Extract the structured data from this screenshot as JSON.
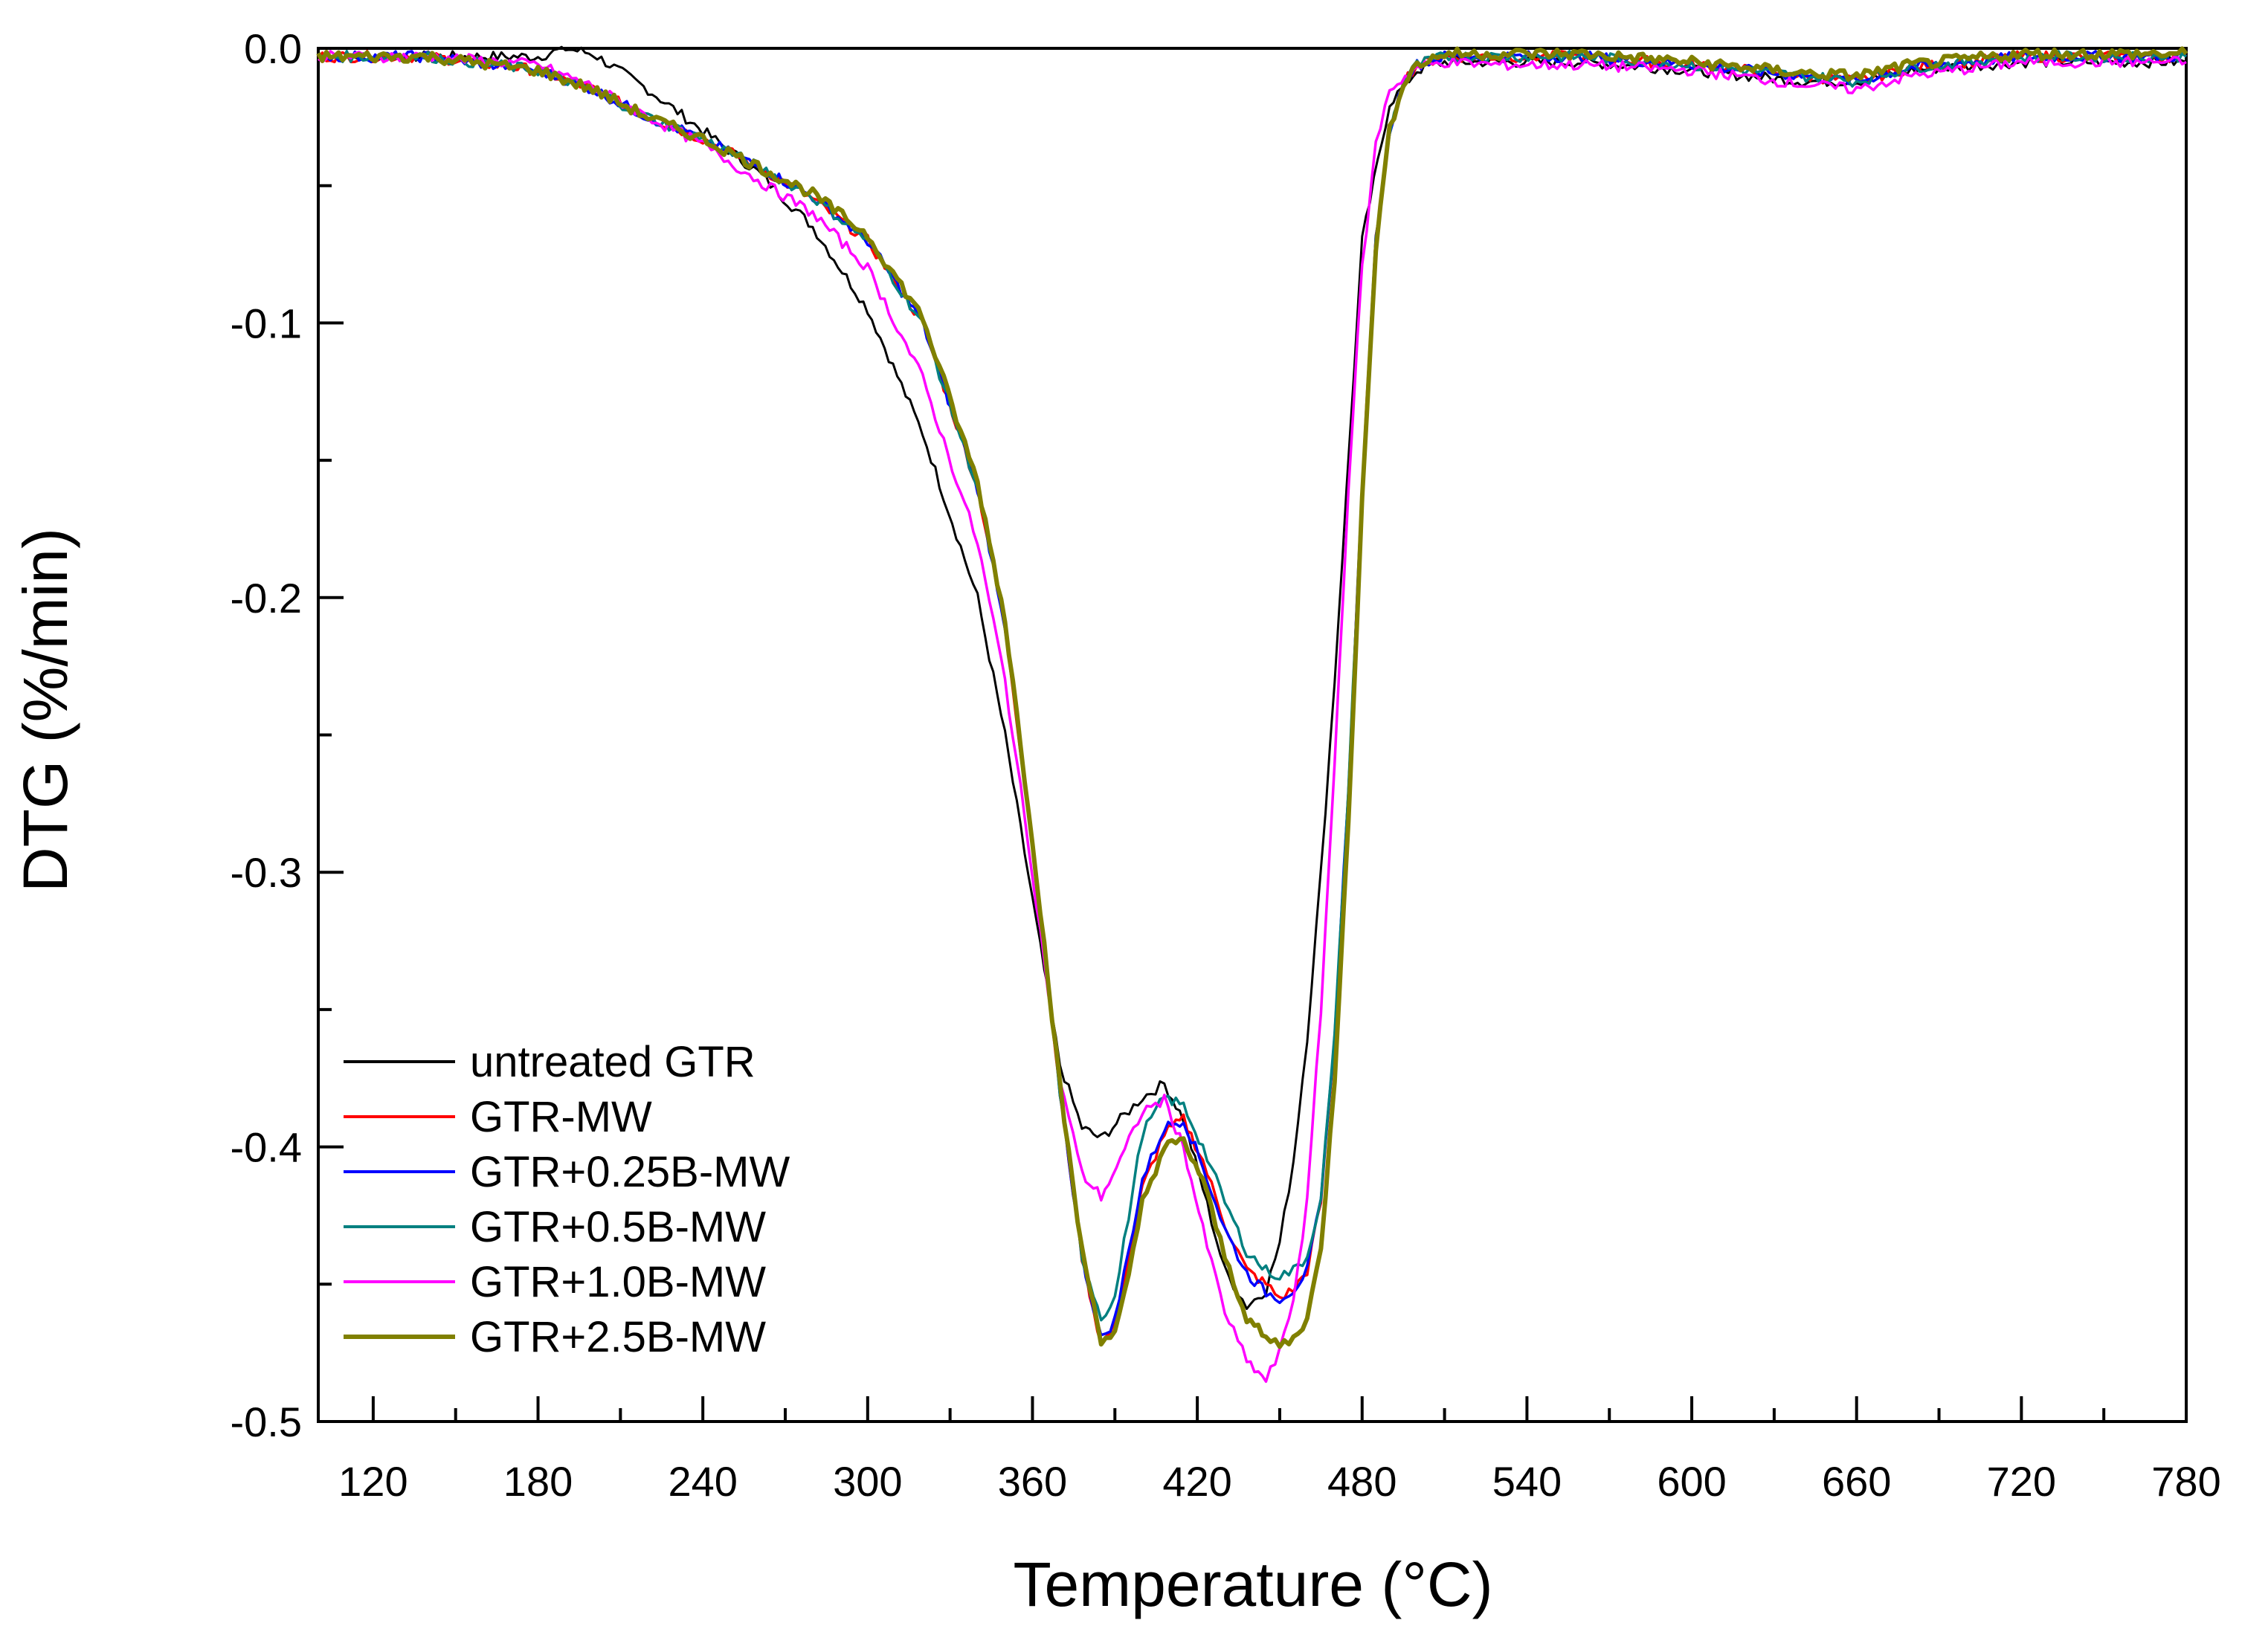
{
  "chart_data": {
    "type": "line",
    "title": "",
    "xlabel": "Temperature (°C)",
    "ylabel": "DTG (%/min)",
    "xlim": [
      100,
      780
    ],
    "ylim": [
      -0.5,
      0.0
    ],
    "x_major_ticks": [
      120,
      180,
      240,
      300,
      360,
      420,
      480,
      540,
      600,
      660,
      720,
      780
    ],
    "x_tick_labels": [
      "120",
      "180",
      "240",
      "300",
      "360",
      "420",
      "480",
      "540",
      "600",
      "660",
      "720",
      "780"
    ],
    "y_major_ticks": [
      0.0,
      -0.1,
      -0.2,
      -0.3,
      -0.4,
      -0.5
    ],
    "y_tick_labels": [
      "0.0",
      "-0.1",
      "-0.2",
      "-0.3",
      "-0.4",
      "-0.5"
    ],
    "grid": false,
    "legend_position": "bottom-left",
    "series": [
      {
        "name": "untreated GTR",
        "color": "#000000",
        "x": [
          100,
          140,
          180,
          190,
          200,
          220,
          240,
          260,
          280,
          300,
          320,
          340,
          350,
          360,
          370,
          378,
          385,
          392,
          400,
          408,
          415,
          422,
          430,
          438,
          445,
          450,
          455,
          460,
          465,
          470,
          480,
          490,
          500,
          510,
          530,
          560,
          600,
          640,
          660,
          680,
          720,
          780
        ],
        "y": [
          -0.003,
          -0.003,
          -0.003,
          0.0,
          -0.002,
          -0.015,
          -0.03,
          -0.045,
          -0.065,
          -0.095,
          -0.14,
          -0.2,
          -0.25,
          -0.31,
          -0.37,
          -0.393,
          -0.397,
          -0.39,
          -0.382,
          -0.377,
          -0.39,
          -0.415,
          -0.445,
          -0.458,
          -0.452,
          -0.435,
          -0.405,
          -0.36,
          -0.3,
          -0.23,
          -0.07,
          -0.02,
          -0.008,
          -0.005,
          -0.005,
          -0.005,
          -0.008,
          -0.012,
          -0.012,
          -0.008,
          -0.005,
          -0.005
        ]
      },
      {
        "name": "GTR-MW",
        "color": "#ff0000",
        "x": [
          100,
          140,
          180,
          200,
          220,
          240,
          260,
          280,
          300,
          320,
          340,
          350,
          360,
          370,
          378,
          385,
          390,
          395,
          400,
          408,
          415,
          422,
          430,
          438,
          445,
          450,
          455,
          460,
          465,
          470,
          475,
          480,
          485,
          490,
          495,
          500,
          510,
          530,
          560,
          600,
          640,
          660,
          680,
          720,
          780
        ],
        "y": [
          -0.003,
          -0.003,
          -0.008,
          -0.015,
          -0.025,
          -0.033,
          -0.043,
          -0.055,
          -0.07,
          -0.1,
          -0.16,
          -0.21,
          -0.29,
          -0.38,
          -0.44,
          -0.472,
          -0.465,
          -0.44,
          -0.415,
          -0.395,
          -0.39,
          -0.405,
          -0.428,
          -0.445,
          -0.45,
          -0.455,
          -0.452,
          -0.445,
          -0.42,
          -0.36,
          -0.27,
          -0.16,
          -0.07,
          -0.03,
          -0.012,
          -0.006,
          -0.003,
          -0.003,
          -0.003,
          -0.006,
          -0.01,
          -0.012,
          -0.007,
          -0.003,
          -0.003
        ]
      },
      {
        "name": "GTR+0.25B-MW",
        "color": "#0000ff",
        "x": [
          100,
          140,
          180,
          200,
          220,
          240,
          260,
          280,
          300,
          320,
          340,
          350,
          360,
          370,
          378,
          385,
          390,
          395,
          400,
          408,
          415,
          422,
          430,
          438,
          445,
          450,
          455,
          460,
          465,
          470,
          475,
          480,
          485,
          490,
          495,
          500,
          510,
          530,
          560,
          600,
          640,
          660,
          680,
          720,
          780
        ],
        "y": [
          -0.003,
          -0.003,
          -0.008,
          -0.015,
          -0.025,
          -0.033,
          -0.043,
          -0.054,
          -0.07,
          -0.1,
          -0.16,
          -0.21,
          -0.29,
          -0.38,
          -0.44,
          -0.47,
          -0.463,
          -0.438,
          -0.412,
          -0.393,
          -0.39,
          -0.407,
          -0.43,
          -0.446,
          -0.453,
          -0.455,
          -0.452,
          -0.445,
          -0.42,
          -0.36,
          -0.27,
          -0.16,
          -0.07,
          -0.03,
          -0.012,
          -0.006,
          -0.003,
          -0.003,
          -0.003,
          -0.006,
          -0.01,
          -0.012,
          -0.007,
          -0.003,
          -0.003
        ]
      },
      {
        "name": "GTR+0.5B-MW",
        "color": "#008080",
        "x": [
          100,
          140,
          180,
          200,
          220,
          240,
          260,
          280,
          300,
          320,
          340,
          350,
          360,
          370,
          378,
          385,
          390,
          395,
          400,
          408,
          415,
          422,
          430,
          438,
          445,
          450,
          455,
          460,
          465,
          470,
          475,
          480,
          485,
          490,
          495,
          500,
          510,
          530,
          560,
          600,
          640,
          660,
          680,
          720,
          780
        ],
        "y": [
          -0.003,
          -0.003,
          -0.008,
          -0.015,
          -0.025,
          -0.033,
          -0.043,
          -0.054,
          -0.07,
          -0.1,
          -0.16,
          -0.21,
          -0.29,
          -0.38,
          -0.44,
          -0.462,
          -0.455,
          -0.425,
          -0.395,
          -0.382,
          -0.385,
          -0.4,
          -0.42,
          -0.438,
          -0.445,
          -0.447,
          -0.445,
          -0.44,
          -0.418,
          -0.36,
          -0.27,
          -0.16,
          -0.07,
          -0.03,
          -0.012,
          -0.006,
          -0.003,
          -0.003,
          -0.003,
          -0.006,
          -0.01,
          -0.012,
          -0.007,
          -0.003,
          -0.003
        ]
      },
      {
        "name": "GTR+1.0B-MW",
        "color": "#ff00ff",
        "x": [
          100,
          140,
          180,
          200,
          220,
          240,
          260,
          280,
          300,
          320,
          340,
          350,
          360,
          370,
          378,
          385,
          392,
          400,
          408,
          415,
          422,
          430,
          438,
          445,
          450,
          455,
          460,
          465,
          470,
          475,
          480,
          485,
          490,
          500,
          510,
          530,
          560,
          600,
          640,
          660,
          680,
          720,
          780
        ],
        "y": [
          -0.003,
          -0.003,
          -0.006,
          -0.014,
          -0.025,
          -0.035,
          -0.048,
          -0.06,
          -0.08,
          -0.12,
          -0.18,
          -0.23,
          -0.3,
          -0.375,
          -0.41,
          -0.418,
          -0.405,
          -0.387,
          -0.383,
          -0.4,
          -0.43,
          -0.46,
          -0.478,
          -0.485,
          -0.475,
          -0.455,
          -0.42,
          -0.35,
          -0.26,
          -0.16,
          -0.08,
          -0.035,
          -0.015,
          -0.007,
          -0.005,
          -0.006,
          -0.006,
          -0.008,
          -0.013,
          -0.015,
          -0.01,
          -0.005,
          -0.005
        ]
      },
      {
        "name": "GTR+2.5B-MW",
        "color": "#808000",
        "x": [
          100,
          140,
          180,
          200,
          220,
          240,
          260,
          280,
          300,
          320,
          340,
          350,
          360,
          370,
          378,
          385,
          390,
          395,
          400,
          408,
          415,
          422,
          430,
          438,
          445,
          450,
          455,
          460,
          465,
          470,
          475,
          480,
          485,
          490,
          495,
          500,
          510,
          530,
          560,
          600,
          640,
          660,
          680,
          720,
          780
        ],
        "y": [
          -0.003,
          -0.003,
          -0.008,
          -0.015,
          -0.025,
          -0.033,
          -0.043,
          -0.053,
          -0.068,
          -0.098,
          -0.158,
          -0.208,
          -0.288,
          -0.378,
          -0.438,
          -0.47,
          -0.468,
          -0.448,
          -0.42,
          -0.4,
          -0.398,
          -0.412,
          -0.44,
          -0.462,
          -0.47,
          -0.472,
          -0.47,
          -0.462,
          -0.438,
          -0.375,
          -0.28,
          -0.165,
          -0.072,
          -0.03,
          -0.012,
          -0.006,
          -0.002,
          -0.002,
          -0.002,
          -0.005,
          -0.009,
          -0.01,
          -0.006,
          -0.002,
          -0.002
        ]
      }
    ]
  }
}
